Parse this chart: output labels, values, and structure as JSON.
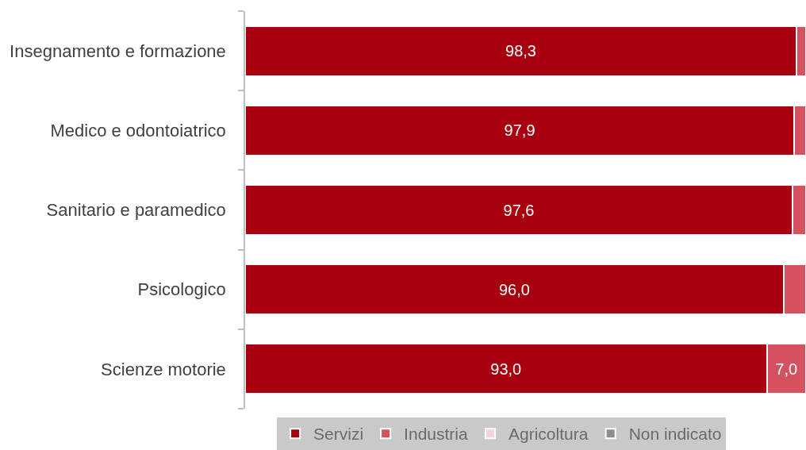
{
  "chart_data": {
    "type": "bar",
    "orientation": "horizontal",
    "stacked": true,
    "categories": [
      "Insegnamento e formazione",
      "Medico e odontoiatrico",
      "Sanitario e paramedico",
      "Psicologico",
      "Scienze motorie"
    ],
    "series": [
      {
        "name": "Servizi",
        "color": "#a8000e",
        "values": [
          98.3,
          97.9,
          97.6,
          96.0,
          93.0
        ],
        "value_labels": [
          "98,3",
          "97,9",
          "97,6",
          "96,0",
          "93,0"
        ]
      },
      {
        "name": "Industria",
        "color": "#d4525f",
        "values": [
          1.7,
          2.1,
          2.4,
          4.0,
          7.0
        ],
        "value_labels": [
          null,
          null,
          null,
          null,
          "7,0"
        ]
      },
      {
        "name": "Agricoltura",
        "color": "#f2d6dc",
        "values": [
          null,
          null,
          null,
          null,
          null
        ]
      },
      {
        "name": "Non indicato",
        "color": "#8c8c8c",
        "values": [
          null,
          null,
          null,
          null,
          null
        ]
      }
    ],
    "xlim": [
      0,
      100
    ],
    "tick_labels": "y",
    "legend": "bottom"
  }
}
